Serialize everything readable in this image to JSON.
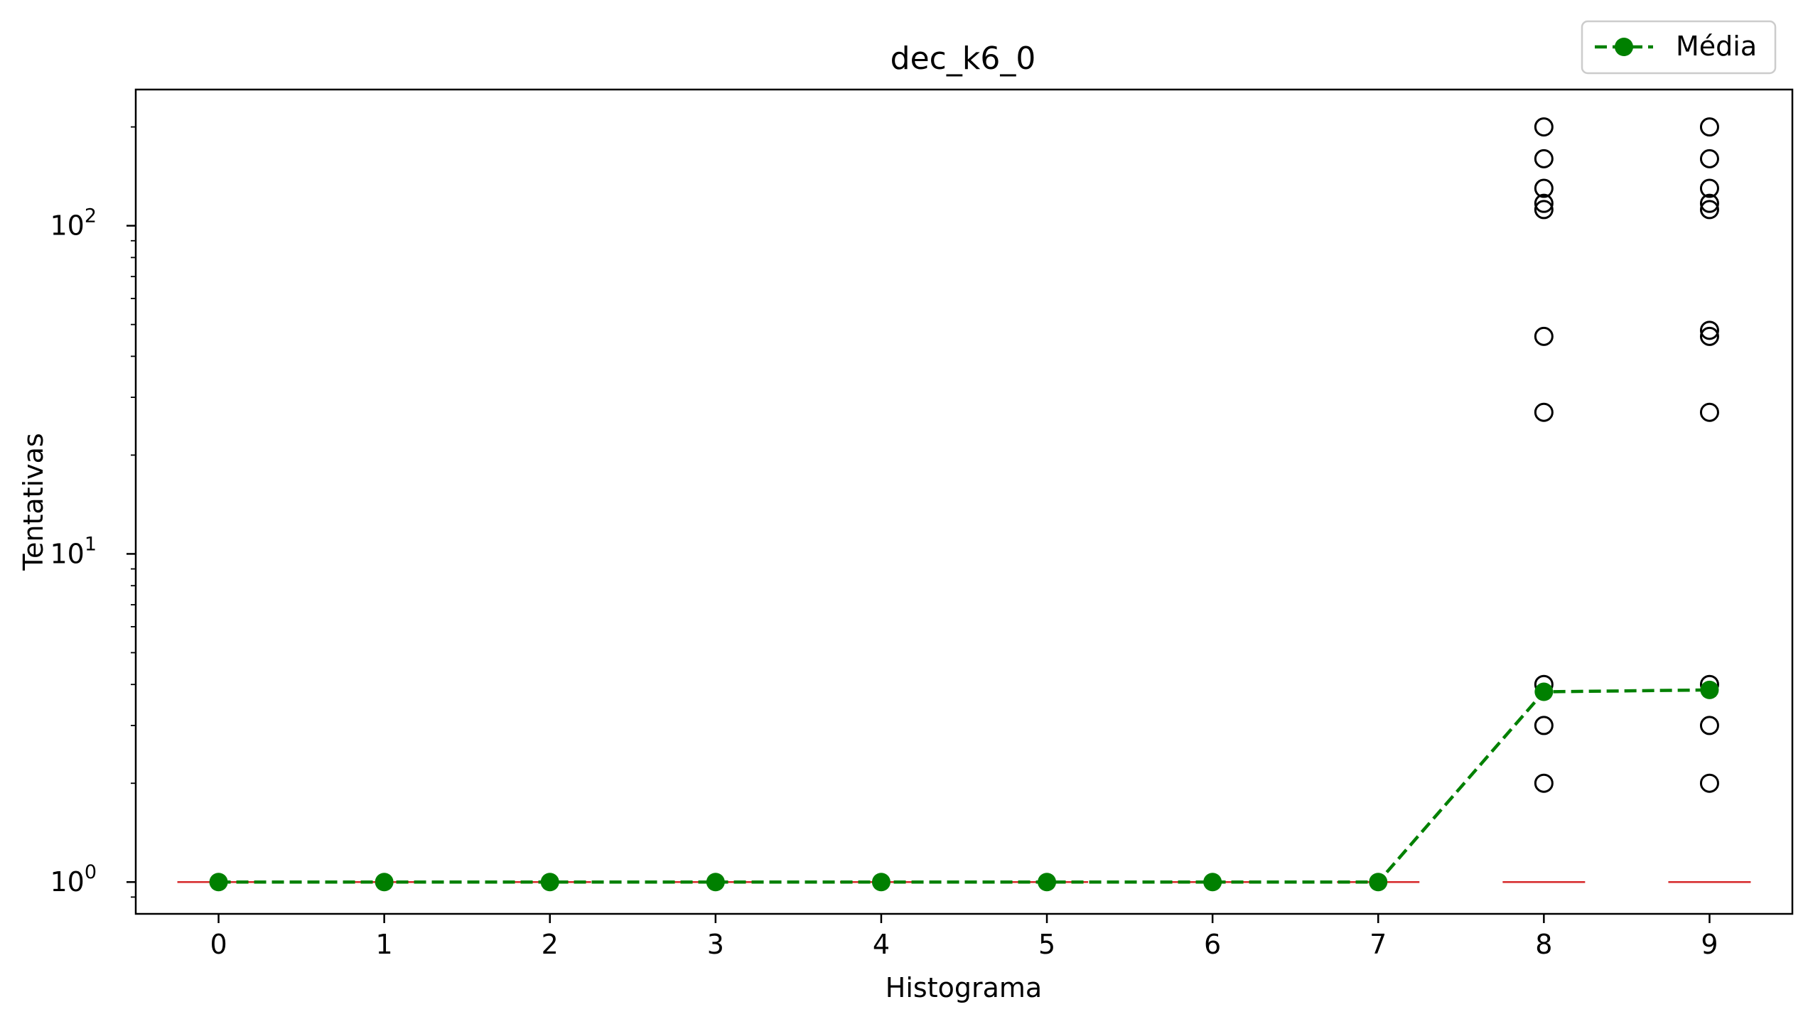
{
  "chart_data": {
    "type": "box",
    "title": "dec_k6_0",
    "xlabel": "Histograma",
    "ylabel": "Tentativas",
    "yscale": "log",
    "ylim": [
      0.8,
      260
    ],
    "xlim": [
      -0.5,
      9.5
    ],
    "grid": false,
    "legend": {
      "position": "top-right, outside above plot",
      "entries": [
        "Média"
      ]
    },
    "x_ticks": [
      0,
      1,
      2,
      3,
      4,
      5,
      6,
      7,
      8,
      9
    ],
    "x_tick_labels": [
      "0",
      "1",
      "2",
      "3",
      "4",
      "5",
      "6",
      "7",
      "8",
      "9"
    ],
    "y_ticks": [
      {
        "value": 1,
        "base": "10",
        "exp": "0"
      },
      {
        "value": 10,
        "base": "10",
        "exp": "1"
      },
      {
        "value": 100,
        "base": "10",
        "exp": "2"
      }
    ],
    "colors": {
      "median": "#d62728",
      "mean": "#008000",
      "outlier": "#000000",
      "axes": "#000000"
    },
    "medians": [
      1,
      1,
      1,
      1,
      1,
      1,
      1,
      1,
      1,
      1
    ],
    "series": [
      {
        "name": "Média",
        "style": "dashed line with filled circle markers",
        "x": [
          0,
          1,
          2,
          3,
          4,
          5,
          6,
          7,
          8,
          9
        ],
        "values": [
          1,
          1,
          1,
          1,
          1,
          1,
          1,
          1,
          3.8,
          3.85
        ]
      }
    ],
    "outliers": [
      {
        "x": 8,
        "values": [
          2,
          3,
          4,
          27,
          46,
          112,
          117,
          130,
          160,
          200
        ]
      },
      {
        "x": 9,
        "values": [
          2,
          3,
          4,
          27,
          46,
          48,
          112,
          117,
          130,
          160,
          200
        ]
      }
    ]
  }
}
